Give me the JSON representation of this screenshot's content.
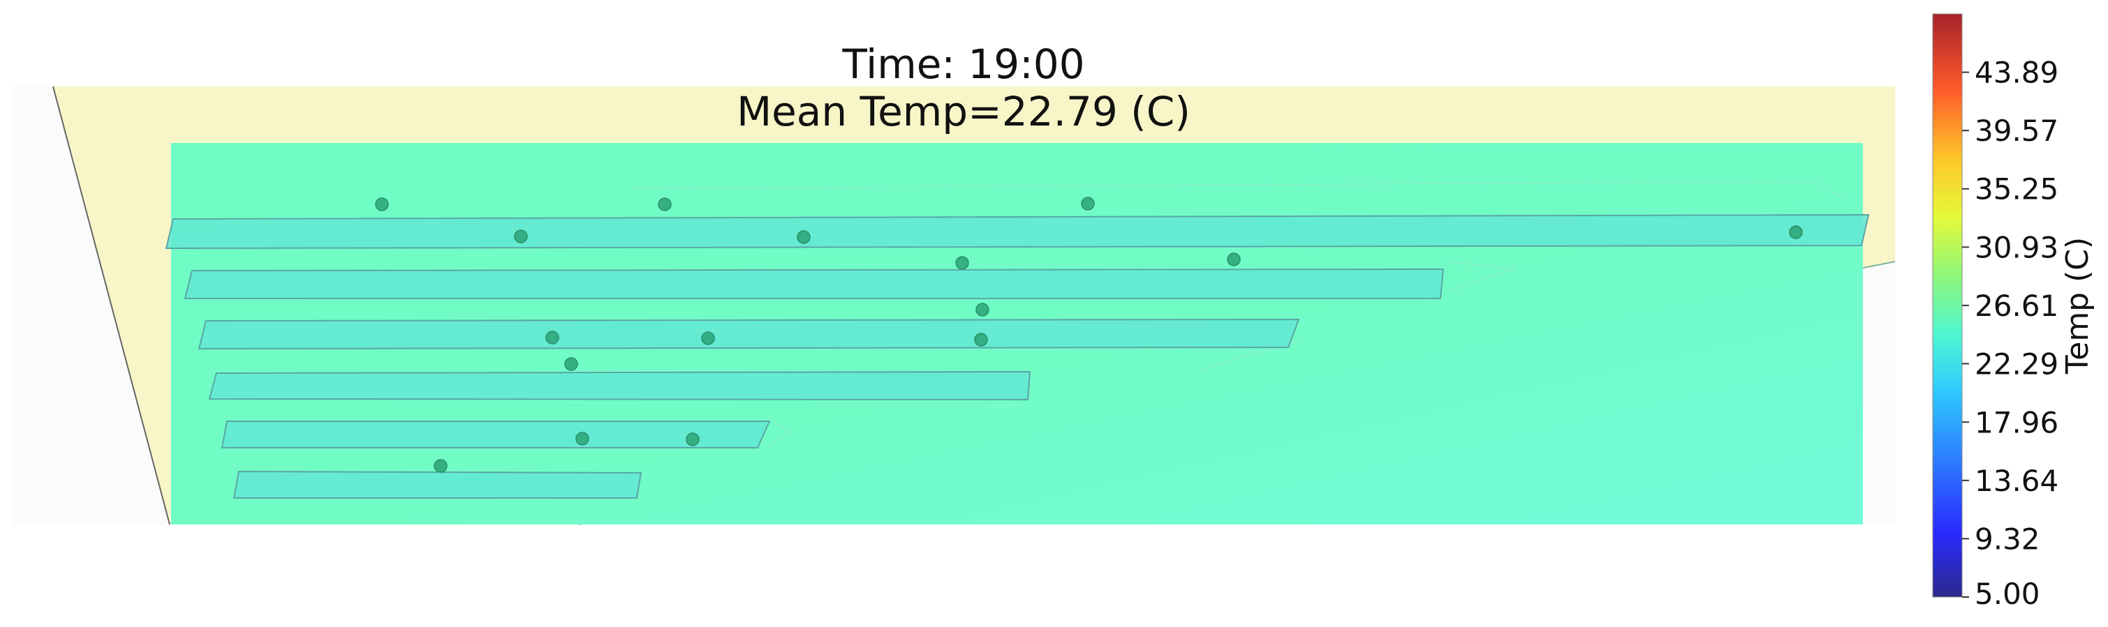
{
  "chart_data": {
    "type": "heatmap",
    "title_line1": "Time: 19:00",
    "title_line2": "Mean Temp=22.79 (C)",
    "colorbar": {
      "label": "Temp (C)",
      "range": [
        5.0,
        48.21
      ],
      "ticks": [
        "5.00",
        "9.32",
        "13.64",
        "17.96",
        "22.29",
        "26.61",
        "30.93",
        "35.25",
        "39.57",
        "43.89"
      ],
      "colormap": "jet"
    },
    "field_color": "#6dfcd2",
    "field_warm_color": "#6cfcbf",
    "background_shape_color": "#f8f6c8",
    "bench_color": "#62e8d2",
    "sensor_color": "#2fa77a"
  }
}
